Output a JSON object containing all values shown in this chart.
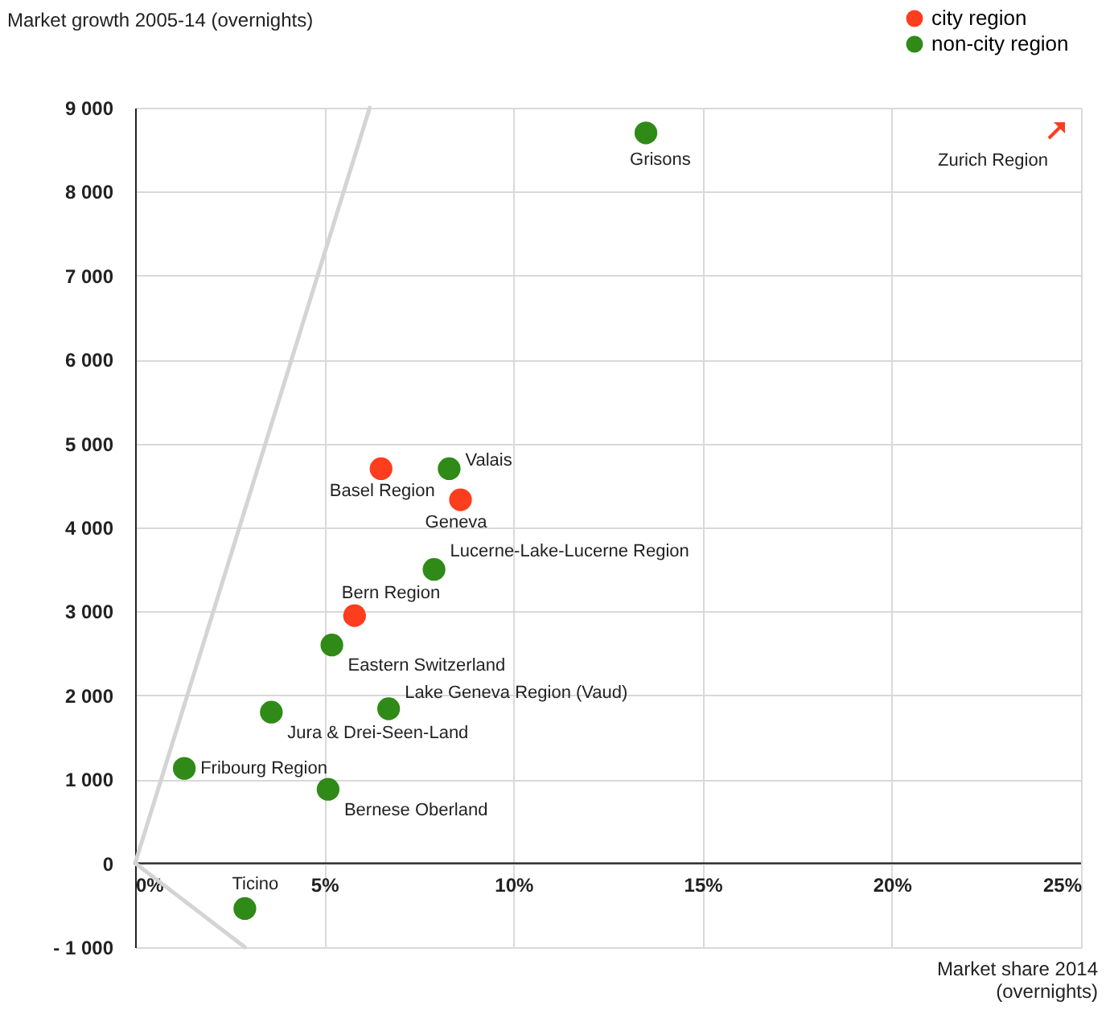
{
  "chart_data": {
    "type": "scatter",
    "ylabel": "Market growth 2005-14 (overnights)",
    "xlabel": "Market share 2014 (overnights)",
    "xlim": [
      0,
      25
    ],
    "ylim": [
      -1000,
      9000
    ],
    "xticks": [
      {
        "value": 0,
        "label": "0%"
      },
      {
        "value": 5,
        "label": "5%"
      },
      {
        "value": 10,
        "label": "10%"
      },
      {
        "value": 15,
        "label": "15%"
      },
      {
        "value": 20,
        "label": "20%"
      },
      {
        "value": 25,
        "label": "25%"
      }
    ],
    "yticks": [
      {
        "value": -1000,
        "label": "- 1 000"
      },
      {
        "value": 0,
        "label": "0"
      },
      {
        "value": 1000,
        "label": "1 000"
      },
      {
        "value": 2000,
        "label": "2 000"
      },
      {
        "value": 3000,
        "label": "3 000"
      },
      {
        "value": 4000,
        "label": "4 000"
      },
      {
        "value": 5000,
        "label": "5 000"
      },
      {
        "value": 6000,
        "label": "6 000"
      },
      {
        "value": 7000,
        "label": "7 000"
      },
      {
        "value": 8000,
        "label": "8 000"
      },
      {
        "value": 9000,
        "label": "9 000"
      }
    ],
    "grid": true,
    "legend": "top right",
    "series": [
      {
        "name": "city region",
        "color": "#fc3d1e",
        "marker": "circle",
        "x": [
          6.5,
          8.6,
          5.8
        ],
        "values": [
          4700,
          4330,
          2950
        ]
      },
      {
        "name": "non-city region",
        "color": "#2f8a17",
        "marker": "circle",
        "x": [
          13.5,
          8.3,
          7.9,
          5.2,
          3.6,
          6.7,
          1.3,
          5.1,
          2.9
        ],
        "values": [
          8700,
          4700,
          3500,
          2600,
          1800,
          1840,
          1130,
          880,
          -540
        ]
      },
      {
        "type": "line",
        "color": "#d4d4d4",
        "x": [
          0,
          6.2
        ],
        "values": [
          0,
          9000
        ]
      },
      {
        "type": "line",
        "color": "#d4d4d4",
        "x": [
          0,
          2.9
        ],
        "values": [
          0,
          -1000
        ]
      }
    ],
    "annotations": [
      {
        "text": "Basel Region",
        "x": 6.5,
        "y": 4700
      },
      {
        "text": "Geneva",
        "x": 8.6,
        "y": 4330
      },
      {
        "text": "Bern Region",
        "x": 5.8,
        "y": 2950
      },
      {
        "text": "Grisons",
        "x": 13.5,
        "y": 8700
      },
      {
        "text": "Valais",
        "x": 8.3,
        "y": 4700
      },
      {
        "text": "Lucerne-Lake-Lucerne Region",
        "x": 7.9,
        "y": 3500
      },
      {
        "text": "Eastern Switzerland",
        "x": 5.2,
        "y": 2600
      },
      {
        "text": "Jura & Drei-Seen-Land",
        "x": 3.6,
        "y": 1800
      },
      {
        "text": "Lake Geneva Region (Vaud)",
        "x": 6.7,
        "y": 1840
      },
      {
        "text": "Fribourg Region",
        "x": 1.3,
        "y": 1130
      },
      {
        "text": "Bernese Oberland",
        "x": 5.1,
        "y": 880
      },
      {
        "text": "Ticino",
        "x": 2.9,
        "y": -540
      },
      "Zurich Region"
    ]
  }
}
